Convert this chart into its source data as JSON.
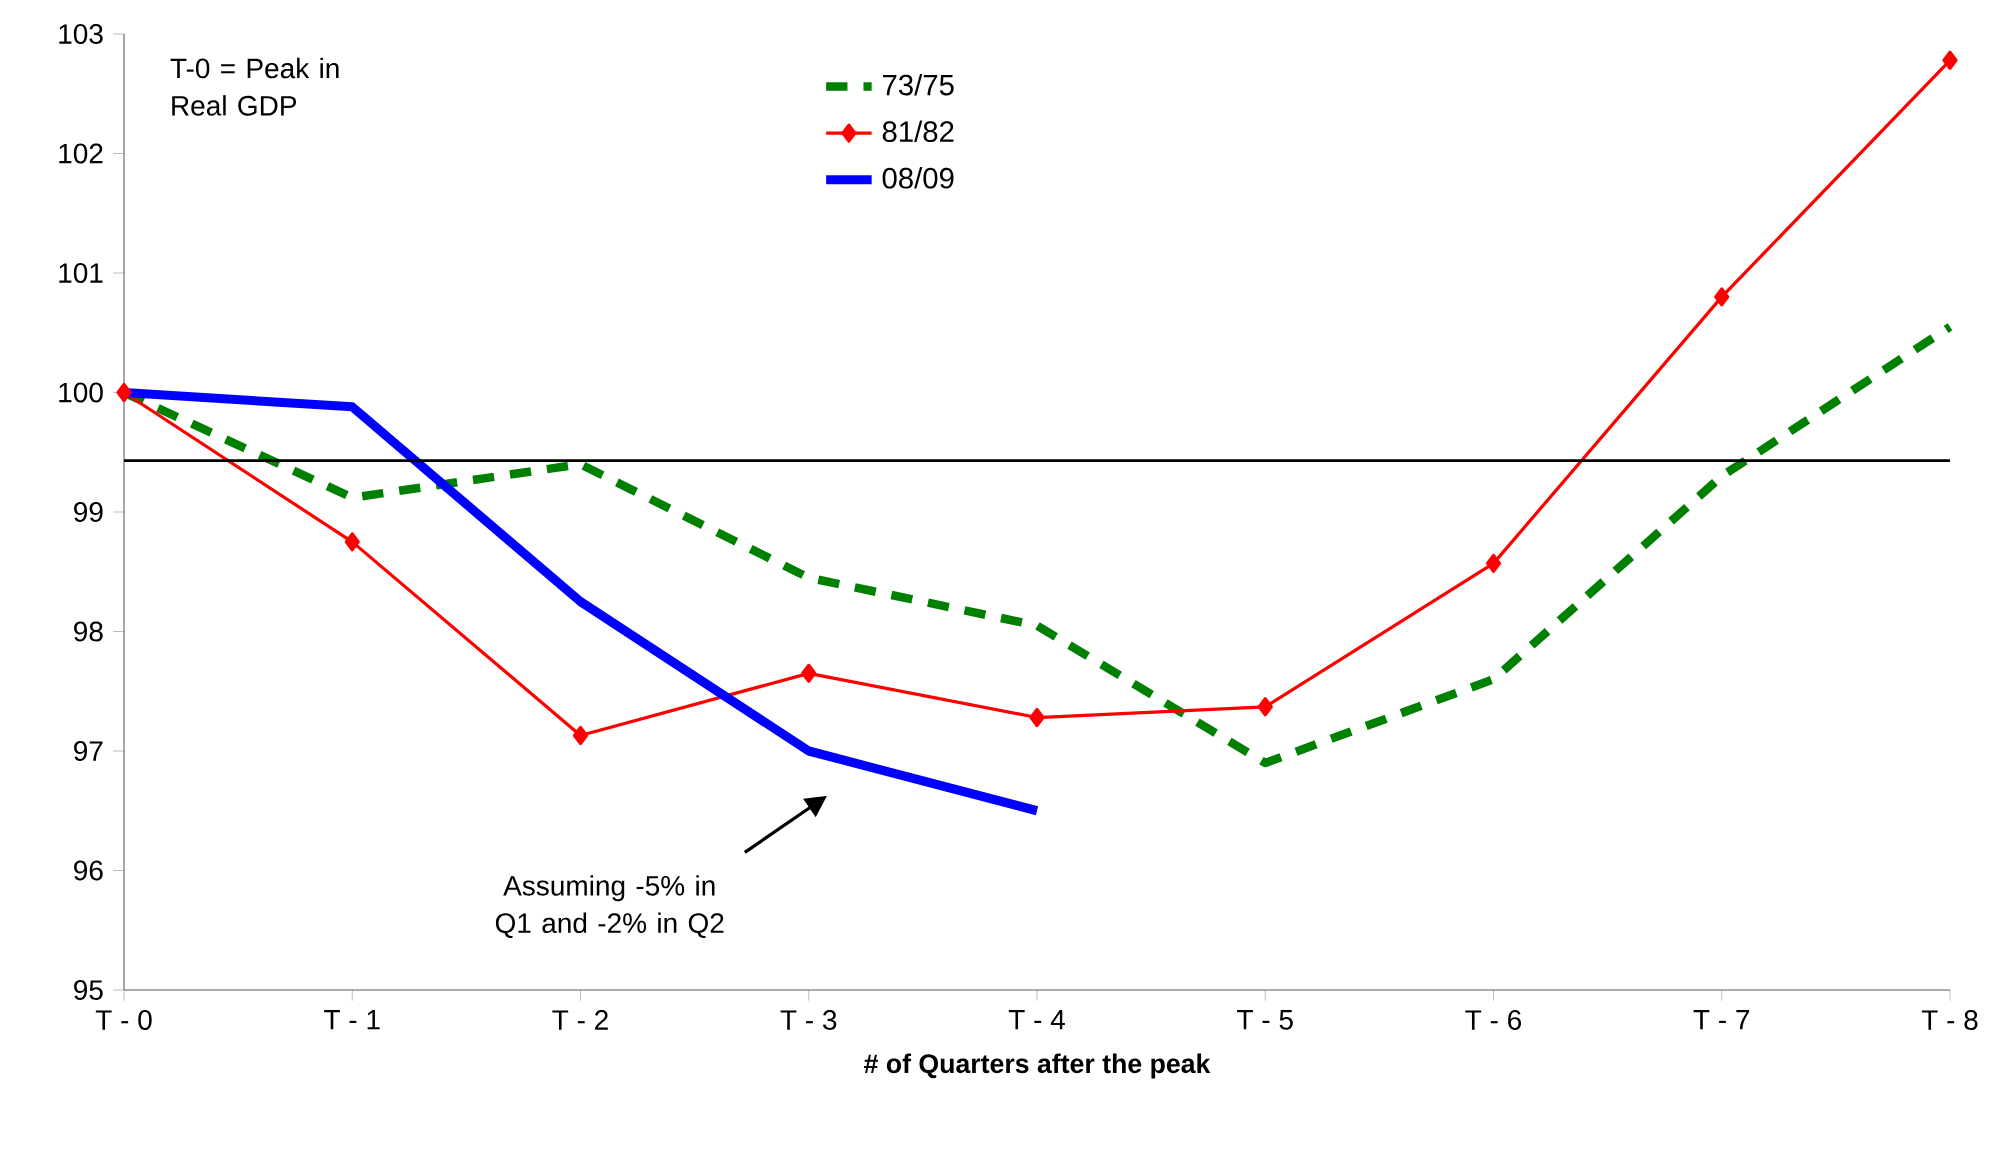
{
  "chart_data": {
    "type": "line",
    "xlabel": "# of Quarters after the peak",
    "categories": [
      "T - 0",
      "T - 1",
      "T - 2",
      "T - 3",
      "T - 4",
      "T - 5",
      "T - 6",
      "T - 7",
      "T - 8"
    ],
    "ylim": [
      95,
      103
    ],
    "yticks": [
      95,
      96,
      97,
      98,
      99,
      100,
      101,
      102,
      103
    ],
    "grid": false,
    "legend": "top",
    "series": [
      {
        "name": "73/75",
        "color": "#008000",
        "line_style": "dashed",
        "marker": "none",
        "values": [
          100,
          99.12,
          99.4,
          98.45,
          98.05,
          96.9,
          97.6,
          99.3,
          100.55
        ]
      },
      {
        "name": "81/82",
        "color": "#ff0000",
        "line_style": "solid",
        "marker": "diamond",
        "values": [
          100,
          98.75,
          97.13,
          97.65,
          97.28,
          97.37,
          98.57,
          100.8,
          102.78
        ]
      },
      {
        "name": "08/09",
        "color": "#0000ff",
        "line_style": "solid",
        "marker": "none",
        "values": [
          100,
          99.88,
          98.25,
          97.0,
          96.5,
          null,
          null,
          null,
          null
        ]
      }
    ],
    "ref_lines": [
      {
        "axis": "y",
        "value": 99.43,
        "color": "#000000"
      }
    ],
    "annotations": [
      "T-0 = Peak in Real GDP",
      "Assuming -5% in Q1 and -2% in Q2"
    ]
  }
}
